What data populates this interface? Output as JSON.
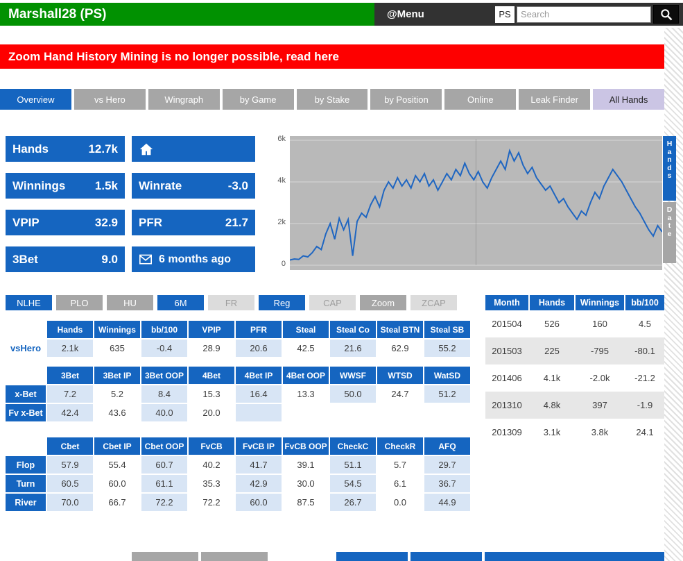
{
  "header": {
    "player": "Marshall28 (PS)",
    "menu": "@Menu",
    "site_tag": "PS",
    "search_placeholder": "Search"
  },
  "banner": {
    "text": "Zoom Hand History Mining is no longer possible, read here"
  },
  "tabs": [
    {
      "label": "Overview",
      "state": "active"
    },
    {
      "label": "vs Hero",
      "state": "inactive"
    },
    {
      "label": "Wingraph",
      "state": "inactive"
    },
    {
      "label": "by Game",
      "state": "inactive"
    },
    {
      "label": "by Stake",
      "state": "inactive"
    },
    {
      "label": "by Position",
      "state": "inactive"
    },
    {
      "label": "Online",
      "state": "inactive"
    },
    {
      "label": "Leak Finder",
      "state": "inactive"
    },
    {
      "label": "All Hands",
      "state": "highlight"
    }
  ],
  "stats": {
    "hands": {
      "label": "Hands",
      "value": "12.7k"
    },
    "winnings": {
      "label": "Winnings",
      "value": "1.5k"
    },
    "winrate": {
      "label": "Winrate",
      "value": "-3.0"
    },
    "vpip": {
      "label": "VPIP",
      "value": "32.9"
    },
    "pfr": {
      "label": "PFR",
      "value": "21.7"
    },
    "threebet": {
      "label": "3Bet",
      "value": "9.0"
    },
    "last_played": "6 months ago"
  },
  "filters": [
    {
      "label": "NLHE",
      "state": "active"
    },
    {
      "label": "PLO",
      "state": "inactive"
    },
    {
      "label": "HU",
      "state": "inactive"
    },
    {
      "label": "6M",
      "state": "active"
    },
    {
      "label": "FR",
      "state": "disabled"
    },
    {
      "label": "Reg",
      "state": "active"
    },
    {
      "label": "CAP",
      "state": "disabled"
    },
    {
      "label": "Zoom",
      "state": "inactive"
    },
    {
      "label": "ZCAP",
      "state": "disabled"
    }
  ],
  "monthly": {
    "headers": [
      "Month",
      "Hands",
      "Winnings",
      "bb/100"
    ],
    "rows": [
      [
        "201504",
        "526",
        "160",
        "4.5"
      ],
      [
        "201503",
        "225",
        "-795",
        "-80.1"
      ],
      [
        "201406",
        "4.1k",
        "-2.0k",
        "-21.2"
      ],
      [
        "201310",
        "4.8k",
        "397",
        "-1.9"
      ],
      [
        "201309",
        "3.1k",
        "3.8k",
        "24.1"
      ]
    ]
  },
  "vshero_table": {
    "headers": [
      "Hands",
      "Winnings",
      "bb/100",
      "VPIP",
      "PFR",
      "Steal",
      "Steal Co",
      "Steal BTN",
      "Steal SB"
    ],
    "rows": [
      {
        "label": "vsHero",
        "values": [
          "2.1k",
          "635",
          "-0.4",
          "28.9",
          "20.6",
          "42.5",
          "21.6",
          "62.9",
          "55.2"
        ]
      }
    ]
  },
  "xbet_table": {
    "headers": [
      "3Bet",
      "3Bet IP",
      "3Bet OOP",
      "4Bet",
      "4Bet IP",
      "4Bet OOP",
      "WWSF",
      "WTSD",
      "WatSD"
    ],
    "rows": [
      {
        "label": "x-Bet",
        "values": [
          "7.2",
          "5.2",
          "8.4",
          "15.3",
          "16.4",
          "13.3",
          "50.0",
          "24.7",
          "51.2"
        ]
      },
      {
        "label": "Fv x-Bet",
        "values": [
          "42.4",
          "43.6",
          "40.0",
          "20.0",
          "",
          "",
          null,
          null,
          null
        ]
      }
    ]
  },
  "cbet_table": {
    "headers": [
      "Cbet",
      "Cbet IP",
      "Cbet OOP",
      "FvCB",
      "FvCB IP",
      "FvCB OOP",
      "CheckC",
      "CheckR",
      "AFQ"
    ],
    "rows": [
      {
        "label": "Flop",
        "values": [
          "57.9",
          "55.4",
          "60.7",
          "40.2",
          "41.7",
          "39.1",
          "51.1",
          "5.7",
          "29.7"
        ]
      },
      {
        "label": "Turn",
        "values": [
          "60.5",
          "60.0",
          "61.1",
          "35.3",
          "42.9",
          "30.0",
          "54.5",
          "6.1",
          "36.7"
        ]
      },
      {
        "label": "River",
        "values": [
          "70.0",
          "66.7",
          "72.2",
          "72.2",
          "60.0",
          "87.5",
          "26.7",
          "0.0",
          "44.9"
        ]
      }
    ]
  },
  "chart_data": {
    "type": "line",
    "unit": "k hands (cumulative)",
    "ylim": [
      0,
      6.2
    ],
    "y_ticks": [
      {
        "v": 6,
        "label": "6k"
      },
      {
        "v": 4,
        "label": "4k"
      },
      {
        "v": 2,
        "label": "2k"
      },
      {
        "v": 0,
        "label": "0"
      }
    ],
    "gridlines_y": [
      0,
      2,
      4,
      6
    ],
    "gridlines_x_frac": [
      0.5
    ],
    "line_color": "#1f66c1",
    "bg_color": "#b9b9b9",
    "side_tabs": [
      {
        "label": "Hands",
        "active": true
      },
      {
        "label": "Date",
        "active": false
      }
    ],
    "values": [
      0.25,
      0.3,
      0.28,
      0.45,
      0.4,
      0.6,
      0.9,
      0.75,
      1.5,
      2.0,
      1.25,
      2.25,
      1.7,
      2.2,
      0.45,
      2.1,
      2.5,
      2.3,
      2.9,
      3.3,
      2.8,
      3.6,
      4.0,
      3.7,
      4.2,
      3.8,
      4.1,
      3.7,
      4.3,
      4.0,
      4.4,
      3.8,
      4.1,
      3.6,
      4.0,
      4.4,
      4.1,
      4.6,
      4.3,
      4.9,
      4.4,
      4.1,
      4.5,
      4.0,
      3.7,
      4.2,
      4.6,
      5.0,
      4.6,
      5.5,
      5.0,
      5.4,
      4.8,
      4.4,
      4.7,
      4.2,
      3.9,
      3.6,
      3.8,
      3.4,
      3.0,
      3.2,
      2.8,
      2.5,
      2.2,
      2.6,
      2.4,
      3.0,
      3.5,
      3.2,
      3.8,
      4.2,
      4.6,
      4.3,
      4.0,
      3.6,
      3.2,
      2.8,
      2.5,
      2.1,
      1.7,
      1.4,
      1.9,
      1.6
    ]
  }
}
